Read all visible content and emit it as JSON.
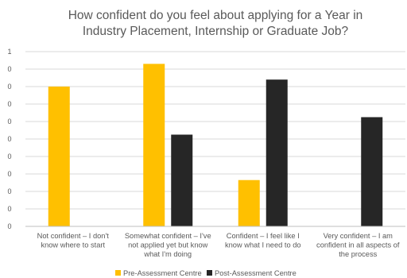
{
  "chart_data": {
    "type": "bar",
    "title": [
      "How confident do you feel about applying for a Year in",
      "Industry Placement, Internship or Graduate Job?"
    ],
    "xlabel": "",
    "ylabel": "",
    "ylim": [
      0,
      1
    ],
    "y_ticks": [
      {
        "value": 0.0,
        "label": "0"
      },
      {
        "value": 0.1,
        "label": "0"
      },
      {
        "value": 0.2,
        "label": "0"
      },
      {
        "value": 0.3,
        "label": "0"
      },
      {
        "value": 0.4,
        "label": "0"
      },
      {
        "value": 0.5,
        "label": "0"
      },
      {
        "value": 0.6,
        "label": "0"
      },
      {
        "value": 0.7,
        "label": "0"
      },
      {
        "value": 0.8,
        "label": "0"
      },
      {
        "value": 0.9,
        "label": "0"
      },
      {
        "value": 1.0,
        "label": "1"
      }
    ],
    "categories": [
      [
        "Not confident – I don't",
        "know where to start"
      ],
      [
        "Somewhat confident – I've",
        "not applied yet but know",
        "what I'm doing"
      ],
      [
        "Confident – I feel like I",
        "know what I need to do"
      ],
      [
        "Very confident – I am",
        "confident in all aspects of",
        "the process"
      ]
    ],
    "series": [
      {
        "name": "Pre-Assessment Centre",
        "color": "#FFC000",
        "values": [
          0.8,
          0.93,
          0.265,
          0.0
        ]
      },
      {
        "name": "Post-Assessment Centre",
        "color": "#262626",
        "values": [
          0.0,
          0.525,
          0.84,
          0.625
        ]
      }
    ],
    "grid": true,
    "legend": "bottom-center"
  }
}
